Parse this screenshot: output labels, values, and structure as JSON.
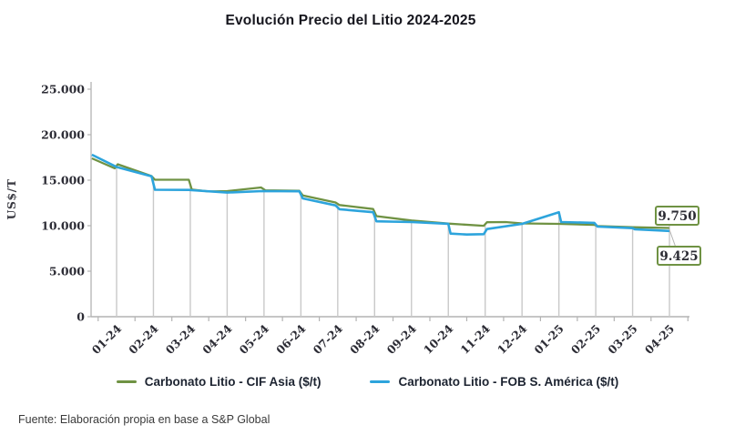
{
  "title": "Evolución Precio del Litio 2024-2025",
  "source_note": "Fuente: Elaboración propia en base a S&P Global",
  "chart_data": {
    "type": "line",
    "title": "Evolución Precio del Litio 2024-2025",
    "ylabel": "US$/T",
    "xlabel": "",
    "ylim": [
      0,
      25000
    ],
    "y_tick_labels": [
      "0",
      "5.000",
      "10.000",
      "15.000",
      "20.000",
      "25.000"
    ],
    "y_tick_values": [
      0,
      5000,
      10000,
      15000,
      20000,
      25000
    ],
    "x_categories": [
      "01-24",
      "02-24",
      "03-24",
      "04-24",
      "05-24",
      "06-24",
      "07-24",
      "08-24",
      "09-24",
      "10-24",
      "11-24",
      "12-24",
      "01-25",
      "02-25",
      "03-25",
      "04-25"
    ],
    "grid": false,
    "drop_lines": true,
    "legend_position": "bottom",
    "axis_color": "#b3b3b3",
    "drop_line_color": "#c9c9c9",
    "tick_label_color": "#2c2c35",
    "series": [
      {
        "name": "Carbonato Litio - CIF Asia ($/t)",
        "color": "#6f9243",
        "end_label": "9.750",
        "monthly_values": [
          16750,
          15050,
          13950,
          13800,
          13900,
          13350,
          12300,
          11050,
          10570,
          10230,
          10300,
          10200,
          10200,
          10080,
          9830,
          9750
        ],
        "path": [
          [
            -0.67,
            17400
          ],
          [
            -0.05,
            16300
          ],
          [
            0.03,
            16750
          ],
          [
            0.95,
            15450
          ],
          [
            1.04,
            15050
          ],
          [
            1.96,
            15050
          ],
          [
            2.04,
            13970
          ],
          [
            2.5,
            13760
          ],
          [
            3,
            13800
          ],
          [
            3.92,
            14200
          ],
          [
            4.04,
            13880
          ],
          [
            4.96,
            13830
          ],
          [
            5.05,
            13330
          ],
          [
            5.94,
            12550
          ],
          [
            6.05,
            12270
          ],
          [
            6.96,
            11830
          ],
          [
            7.05,
            11050
          ],
          [
            8,
            10570
          ],
          [
            9,
            10230
          ],
          [
            9.96,
            9990
          ],
          [
            10.05,
            10380
          ],
          [
            10.55,
            10400
          ],
          [
            11,
            10250
          ],
          [
            12,
            10200
          ],
          [
            12.96,
            10090
          ],
          [
            13.05,
            9960
          ],
          [
            14,
            9830
          ],
          [
            15,
            9750
          ]
        ]
      },
      {
        "name": "Carbonato Litio - FOB S. América ($/t)",
        "color": "#2da4dc",
        "end_label": "9.425",
        "monthly_values": [
          16450,
          13950,
          13900,
          13650,
          13800,
          13000,
          11800,
          10480,
          10400,
          9100,
          9630,
          10200,
          11480,
          10310,
          9730,
          9425
        ],
        "path": [
          [
            -0.67,
            17800
          ],
          [
            0,
            16450
          ],
          [
            0.95,
            15430
          ],
          [
            1.04,
            13950
          ],
          [
            1.96,
            13930
          ],
          [
            2.04,
            13900
          ],
          [
            3,
            13640
          ],
          [
            3.94,
            13800
          ],
          [
            4.96,
            13780
          ],
          [
            5.05,
            13000
          ],
          [
            5.94,
            12230
          ],
          [
            6.05,
            11810
          ],
          [
            6.96,
            11480
          ],
          [
            7.05,
            10480
          ],
          [
            8,
            10400
          ],
          [
            9,
            10210
          ],
          [
            9.06,
            9130
          ],
          [
            9.5,
            9030
          ],
          [
            9.96,
            9070
          ],
          [
            10.05,
            9630
          ],
          [
            11,
            10200
          ],
          [
            12,
            11480
          ],
          [
            12.06,
            10400
          ],
          [
            12.96,
            10310
          ],
          [
            13.05,
            9900
          ],
          [
            14,
            9730
          ],
          [
            14.06,
            9610
          ],
          [
            15,
            9425
          ]
        ]
      }
    ]
  }
}
